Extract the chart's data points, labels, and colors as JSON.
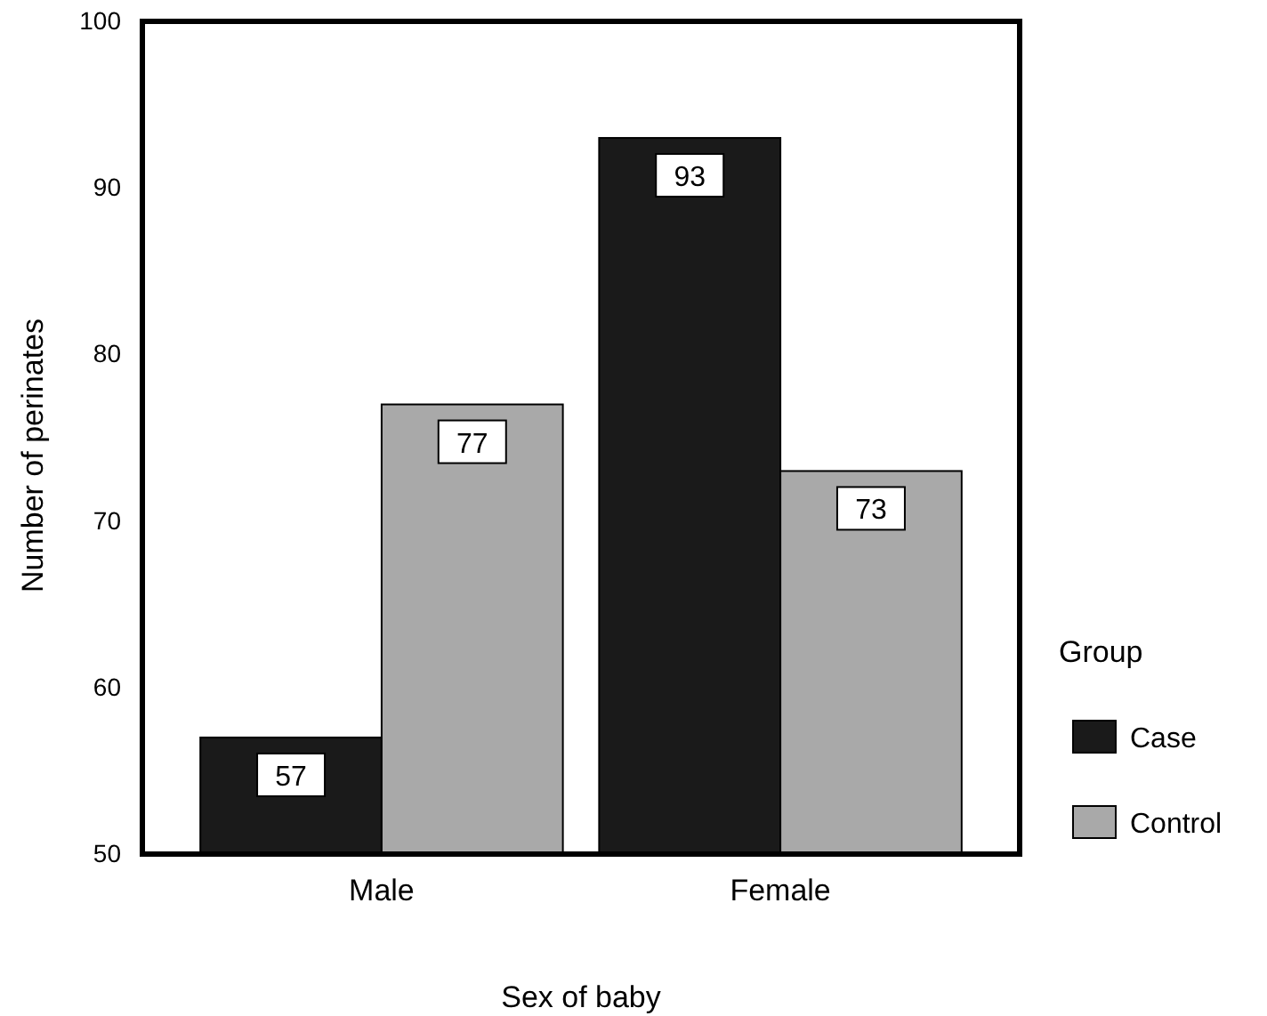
{
  "chart_data": {
    "type": "bar",
    "xlabel": "Sex of baby",
    "ylabel": "Number of perinates",
    "legend_title": "Group",
    "categories": [
      "Male",
      "Female"
    ],
    "series": [
      {
        "name": "Case",
        "color": "#1a1a1a",
        "values": [
          57,
          93
        ]
      },
      {
        "name": "Control",
        "color": "#a9a9a9",
        "values": [
          77,
          73
        ]
      }
    ],
    "ylim": [
      50,
      100
    ],
    "yticks": [
      50,
      60,
      70,
      80,
      90,
      100
    ],
    "data_labels": true,
    "legend": "right",
    "grid": false
  }
}
